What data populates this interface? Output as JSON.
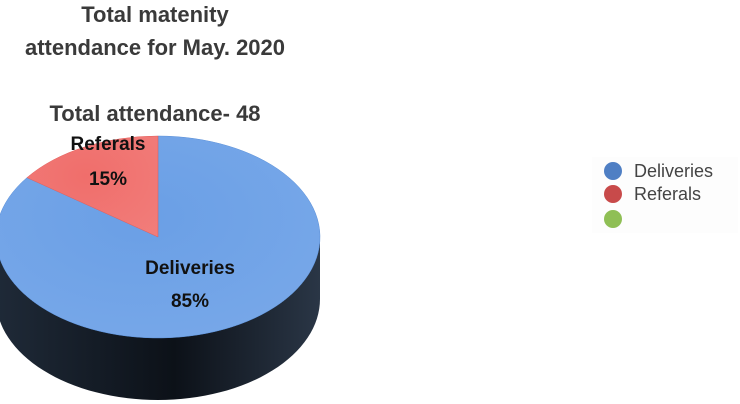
{
  "chart_data": {
    "type": "pie",
    "title_lines": [
      "Total matenity",
      "attendance for May. 2020"
    ],
    "subtitle": "Total attendance- 48",
    "slices": [
      {
        "name": "Deliveries",
        "value": 85,
        "label": "85%",
        "color": "#6a9fe6"
      },
      {
        "name": "Referals",
        "value": 15,
        "label": "15%",
        "color": "#f06e6b"
      }
    ],
    "legend": [
      {
        "name": "Deliveries",
        "color": "#4f7fc4"
      },
      {
        "name": "Referals",
        "color": "#c84a4a"
      },
      {
        "name": "",
        "color": "#8fbf55"
      }
    ],
    "legend_position": "right"
  }
}
